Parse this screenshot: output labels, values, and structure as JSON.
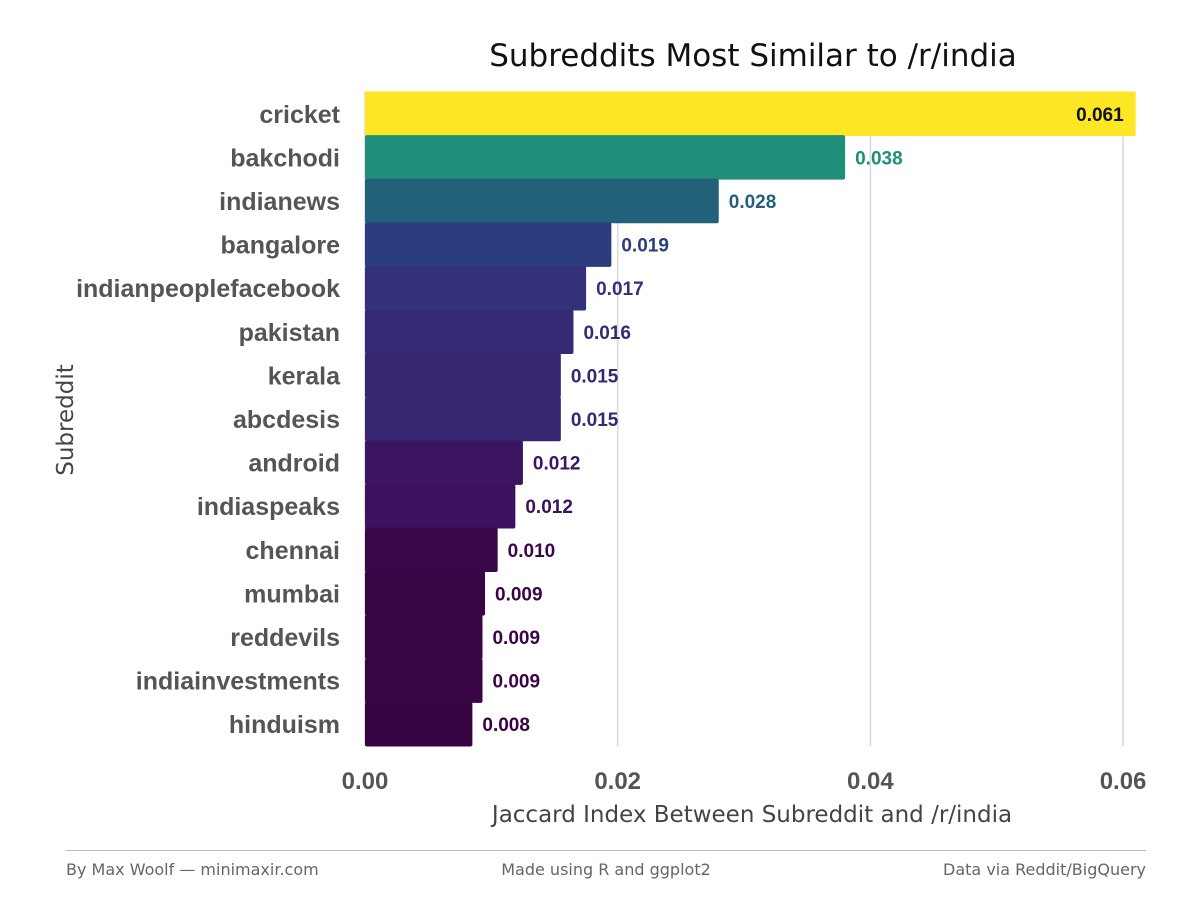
{
  "chart_data": {
    "type": "bar",
    "orientation": "horizontal",
    "title": "Subreddits Most Similar to /r/india",
    "xlabel": "Jaccard Index Between Subreddit and /r/india",
    "ylabel": "Subreddit",
    "xlim": [
      0,
      0.0615
    ],
    "xticks": [
      0,
      0.02,
      0.04,
      0.06
    ],
    "xtick_labels": [
      "0.00",
      "0.02",
      "0.04",
      "0.06"
    ],
    "grid": "vertical major",
    "legend": "none",
    "categories": [
      "cricket",
      "bakchodi",
      "indianews",
      "bangalore",
      "indianpeoplefacebook",
      "pakistan",
      "kerala",
      "abcdesis",
      "android",
      "indiaspeaks",
      "chennai",
      "mumbai",
      "reddevils",
      "indiainvestments",
      "hinduism"
    ],
    "values": [
      0.061,
      0.038,
      0.028,
      0.0195,
      0.0175,
      0.0165,
      0.0155,
      0.0155,
      0.0125,
      0.0119,
      0.0105,
      0.0095,
      0.0093,
      0.0093,
      0.0085
    ],
    "value_labels": [
      "0.061",
      "0.038",
      "0.028",
      "0.019",
      "0.017",
      "0.016",
      "0.015",
      "0.015",
      "0.012",
      "0.012",
      "0.010",
      "0.009",
      "0.009",
      "0.009",
      "0.008"
    ],
    "colors": [
      "#fde725",
      "#1f8f7a",
      "#23607a",
      "#2c3d7d",
      "#32317a",
      "#352a73",
      "#372670",
      "#372670",
      "#3b1560",
      "#3c115e",
      "#3a0848",
      "#390545",
      "#390545",
      "#390545",
      "#380342"
    ],
    "label_colors": [
      "#111111",
      "#1f8f7a",
      "#23607a",
      "#2c3d7d",
      "#32317a",
      "#352a73",
      "#372670",
      "#372670",
      "#3b1560",
      "#3c115e",
      "#3a0848",
      "#390545",
      "#390545",
      "#390545",
      "#380342"
    ]
  },
  "footer": {
    "left": "By Max Woolf — minimaxir.com",
    "center": "Made using R and ggplot2",
    "right": "Data via Reddit/BigQuery"
  }
}
